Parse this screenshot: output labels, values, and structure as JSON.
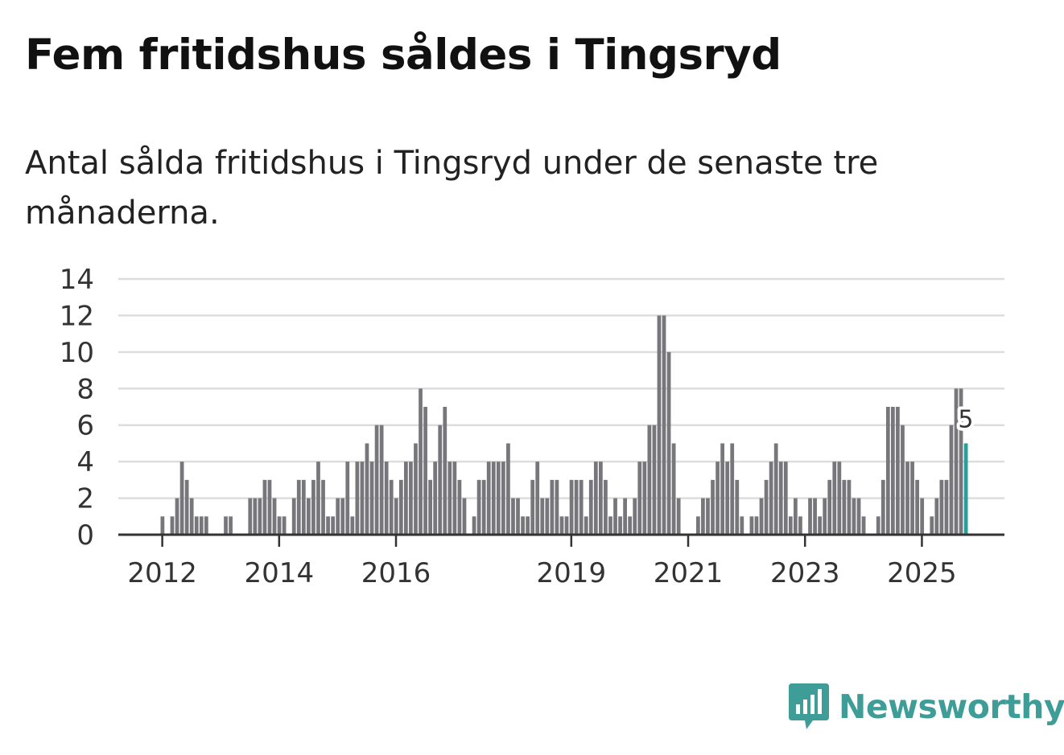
{
  "title": "Fem fritidshus såldes i Tingsryd",
  "subtitle": "Antal sålda fritidshus i Tingsryd under de senaste tre månaderna.",
  "brand": {
    "name": "Newsworthy",
    "icon": "newsworthy-logo-icon",
    "color": "#3f9d98"
  },
  "colors": {
    "bar": "#77767b",
    "highlight": "#2a9d9a",
    "grid": "#dddddd",
    "axis": "#333333"
  },
  "chart_data": {
    "type": "bar",
    "title": "Fem fritidshus såldes i Tingsryd",
    "xlabel": "",
    "ylabel": "",
    "ylim": [
      0,
      14
    ],
    "yticks": [
      0,
      2,
      4,
      6,
      8,
      10,
      12,
      14
    ],
    "xticks": [
      {
        "label": "2012",
        "index": 2
      },
      {
        "label": "2014",
        "index": 26
      },
      {
        "label": "2016",
        "index": 50
      },
      {
        "label": "2019",
        "index": 86
      },
      {
        "label": "2021",
        "index": 110
      },
      {
        "label": "2023",
        "index": 134
      },
      {
        "label": "2025",
        "index": 158
      }
    ],
    "values": [
      0,
      0,
      1,
      0,
      1,
      2,
      4,
      3,
      2,
      1,
      1,
      1,
      0,
      0,
      0,
      1,
      1,
      0,
      0,
      0,
      2,
      2,
      2,
      3,
      3,
      2,
      1,
      1,
      0,
      2,
      3,
      3,
      2,
      3,
      4,
      3,
      1,
      1,
      2,
      2,
      4,
      1,
      4,
      4,
      5,
      4,
      6,
      6,
      4,
      3,
      2,
      3,
      4,
      4,
      5,
      8,
      7,
      3,
      4,
      6,
      7,
      4,
      4,
      3,
      2,
      0,
      1,
      3,
      3,
      4,
      4,
      4,
      4,
      5,
      2,
      2,
      1,
      1,
      3,
      4,
      2,
      2,
      3,
      3,
      1,
      1,
      3,
      3,
      3,
      1,
      3,
      4,
      4,
      3,
      1,
      2,
      1,
      2,
      1,
      2,
      4,
      4,
      6,
      6,
      12,
      12,
      10,
      5,
      2,
      0,
      0,
      0,
      1,
      2,
      2,
      3,
      4,
      5,
      4,
      5,
      3,
      1,
      0,
      1,
      1,
      2,
      3,
      4,
      5,
      4,
      4,
      1,
      2,
      1,
      0,
      2,
      2,
      1,
      2,
      3,
      4,
      4,
      3,
      3,
      2,
      2,
      1,
      0,
      0,
      1,
      3,
      7,
      7,
      7,
      6,
      4,
      4,
      3,
      2,
      0,
      1,
      2,
      3,
      3,
      6,
      8,
      8,
      5
    ],
    "highlight": {
      "index": 167,
      "value": 5,
      "label": "5"
    }
  }
}
